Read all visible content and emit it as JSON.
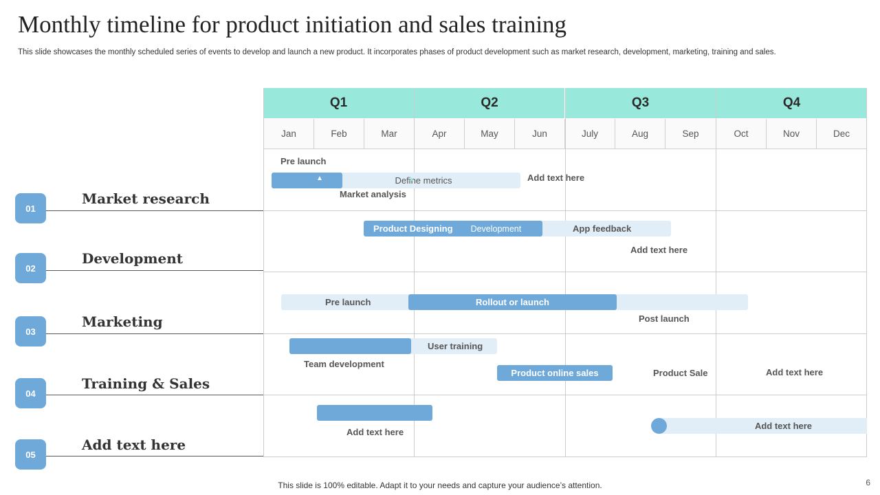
{
  "title": "Monthly timeline for product initiation and sales training",
  "subtitle": "This slide showcases the monthly scheduled series of events to  develop and launch a new product. It incorporates phases of product development such as market research, development, marketing, training and sales.",
  "quarters": [
    "Q1",
    "Q2",
    "Q3",
    "Q4"
  ],
  "months": [
    "Jan",
    "Feb",
    "Mar",
    "Apr",
    "May",
    "Jun",
    "July",
    "Aug",
    "Sep",
    "Oct",
    "Nov",
    "Dec"
  ],
  "rows": [
    {
      "num": "01",
      "label": "Market  research"
    },
    {
      "num": "02",
      "label": "Development"
    },
    {
      "num": "03",
      "label": "Marketing"
    },
    {
      "num": "04",
      "label": "Training & Sales"
    },
    {
      "num": "05",
      "label": "Add text here"
    }
  ],
  "tasks": {
    "pre_launch_1": "Pre launch",
    "define_metrics": "Define  metrics",
    "add_text_1": "Add text here",
    "market_analysis": "Market analysis",
    "product_designing": "Product Designing",
    "development": "Development",
    "app_feedback": "App feedback",
    "add_text_2": "Add text here",
    "pre_launch_2": "Pre launch",
    "rollout": "Rollout or launch",
    "post_launch": "Post launch",
    "user_training": "User training",
    "team_development": "Team development",
    "product_online_sales": "Product online sales",
    "product_sale": "Product Sale",
    "add_text_3": "Add text here",
    "add_text_4": "Add text here",
    "add_text_5": "Add text here"
  },
  "footer": "This slide is 100% editable. Adapt it to your needs and capture your audience’s attention.",
  "page_number": "6",
  "colors": {
    "quarter_header": "#98e9dc",
    "bar_dark": "#6fa9d9",
    "bar_light": "#e1eef8"
  }
}
